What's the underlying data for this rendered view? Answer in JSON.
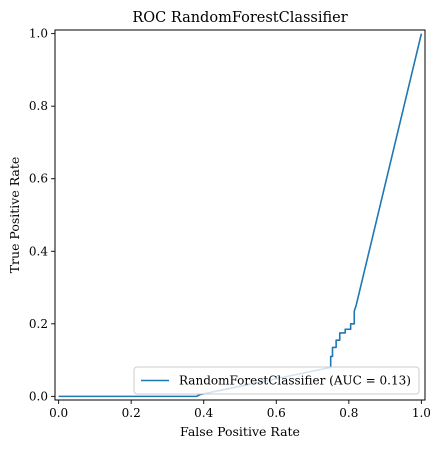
{
  "chart_data": {
    "type": "line",
    "title": "ROC RandomForestClassifier",
    "xlabel": "False Positive Rate",
    "ylabel": "True Positive Rate",
    "xlim": [
      -0.01,
      1.01
    ],
    "ylim": [
      -0.01,
      1.01
    ],
    "xticks": [
      0.0,
      0.2,
      0.4,
      0.6,
      0.8,
      1.0
    ],
    "yticks": [
      0.0,
      0.2,
      0.4,
      0.6,
      0.8,
      1.0
    ],
    "xtick_labels": [
      "0.0",
      "0.2",
      "0.4",
      "0.6",
      "0.8",
      "1.0"
    ],
    "ytick_labels": [
      "0.0",
      "0.2",
      "0.4",
      "0.6",
      "0.8",
      "1.0"
    ],
    "grid": false,
    "legend_position": "lower-right",
    "series": [
      {
        "name": "RandomForestClassifier (AUC = 0.13)",
        "color": "#1f77b4",
        "x": [
          0.0,
          0.38,
          0.39,
          0.75,
          0.75,
          0.755,
          0.755,
          0.765,
          0.765,
          0.775,
          0.775,
          0.79,
          0.79,
          0.805,
          0.805,
          0.815,
          0.815,
          0.82,
          1.0
        ],
        "y": [
          0.0,
          0.0,
          0.005,
          0.08,
          0.11,
          0.11,
          0.135,
          0.135,
          0.155,
          0.155,
          0.175,
          0.175,
          0.185,
          0.185,
          0.2,
          0.2,
          0.235,
          0.25,
          1.0
        ]
      }
    ]
  }
}
